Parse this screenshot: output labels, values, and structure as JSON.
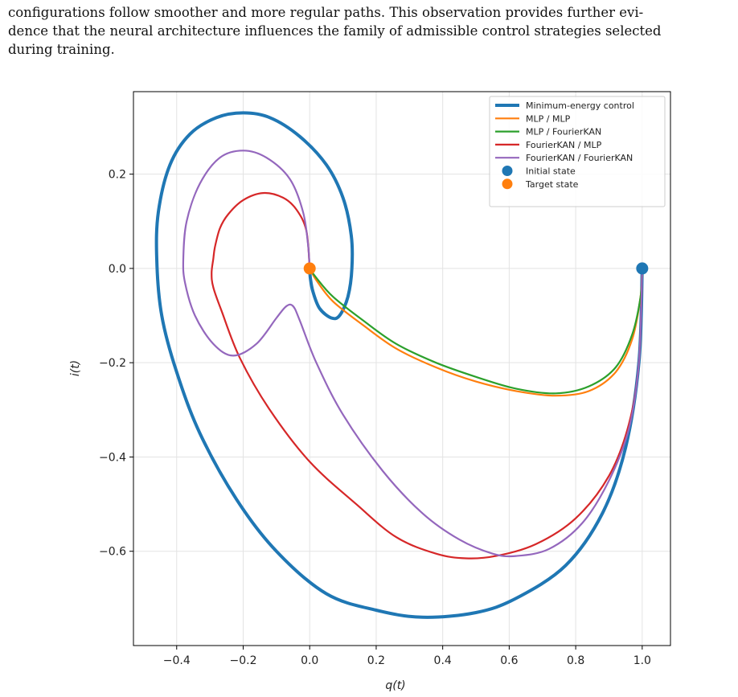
{
  "paragraph": {
    "lines": [
      "configurations follow smoother and more regular paths. This observation provides further evi-",
      "dence that the neural architecture influences the family of admissible control strategies selected",
      "during training."
    ]
  },
  "chart_data": {
    "type": "line",
    "title": "",
    "xlabel": "q(t)",
    "ylabel": "i(t)",
    "xlim": [
      -0.53,
      1.085
    ],
    "ylim": [
      -0.8,
      0.375
    ],
    "xticks": [
      -0.4,
      -0.2,
      0.0,
      0.2,
      0.4,
      0.6,
      0.8,
      1.0
    ],
    "xtick_labels": [
      "−0.4",
      "−0.2",
      "0.0",
      "0.2",
      "0.4",
      "0.6",
      "0.8",
      "1.0"
    ],
    "yticks": [
      0.2,
      0.0,
      -0.2,
      -0.4,
      -0.6
    ],
    "ytick_labels": [
      "0.2",
      "0.0",
      "−0.2",
      "−0.4",
      "−0.6"
    ],
    "grid": true,
    "legend_position": "top-right",
    "series": [
      {
        "name": "Minimum-energy control",
        "color": "#1f77b4",
        "points": [
          [
            1.0,
            0.0
          ],
          [
            0.99,
            -0.2
          ],
          [
            0.95,
            -0.38
          ],
          [
            0.88,
            -0.52
          ],
          [
            0.77,
            -0.63
          ],
          [
            0.62,
            -0.7
          ],
          [
            0.5,
            -0.73
          ],
          [
            0.34,
            -0.74
          ],
          [
            0.2,
            -0.725
          ],
          [
            0.05,
            -0.69
          ],
          [
            -0.1,
            -0.6
          ],
          [
            -0.22,
            -0.49
          ],
          [
            -0.33,
            -0.35
          ],
          [
            -0.4,
            -0.22
          ],
          [
            -0.445,
            -0.1
          ],
          [
            -0.46,
            0.02
          ],
          [
            -0.455,
            0.12
          ],
          [
            -0.42,
            0.22
          ],
          [
            -0.36,
            0.285
          ],
          [
            -0.28,
            0.32
          ],
          [
            -0.2,
            0.33
          ],
          [
            -0.12,
            0.32
          ],
          [
            -0.03,
            0.28
          ],
          [
            0.05,
            0.22
          ],
          [
            0.1,
            0.15
          ],
          [
            0.125,
            0.07
          ],
          [
            0.127,
            0.0
          ],
          [
            0.115,
            -0.06
          ],
          [
            0.09,
            -0.1
          ],
          [
            0.065,
            -0.105
          ],
          [
            0.03,
            -0.085
          ],
          [
            0.01,
            -0.05
          ],
          [
            0.002,
            -0.02
          ],
          [
            0.0,
            0.0
          ]
        ]
      },
      {
        "name": "MLP / MLP",
        "color": "#ff7f0e",
        "points": [
          [
            1.0,
            0.0
          ],
          [
            0.995,
            -0.06
          ],
          [
            0.97,
            -0.15
          ],
          [
            0.92,
            -0.22
          ],
          [
            0.84,
            -0.26
          ],
          [
            0.74,
            -0.27
          ],
          [
            0.62,
            -0.26
          ],
          [
            0.5,
            -0.24
          ],
          [
            0.38,
            -0.21
          ],
          [
            0.26,
            -0.17
          ],
          [
            0.16,
            -0.12
          ],
          [
            0.07,
            -0.07
          ],
          [
            0.02,
            -0.025
          ],
          [
            0.0,
            0.0
          ]
        ]
      },
      {
        "name": "MLP / FourierKAN",
        "color": "#2ca02c",
        "points": [
          [
            1.0,
            0.0
          ],
          [
            0.995,
            -0.06
          ],
          [
            0.97,
            -0.14
          ],
          [
            0.92,
            -0.21
          ],
          [
            0.84,
            -0.25
          ],
          [
            0.74,
            -0.265
          ],
          [
            0.62,
            -0.255
          ],
          [
            0.5,
            -0.23
          ],
          [
            0.38,
            -0.2
          ],
          [
            0.26,
            -0.16
          ],
          [
            0.16,
            -0.11
          ],
          [
            0.07,
            -0.06
          ],
          [
            0.02,
            -0.02
          ],
          [
            0.0,
            0.0
          ]
        ]
      },
      {
        "name": "FourierKAN / MLP",
        "color": "#d62728",
        "points": [
          [
            1.0,
            0.0
          ],
          [
            0.99,
            -0.2
          ],
          [
            0.96,
            -0.33
          ],
          [
            0.9,
            -0.44
          ],
          [
            0.8,
            -0.53
          ],
          [
            0.68,
            -0.585
          ],
          [
            0.56,
            -0.61
          ],
          [
            0.47,
            -0.615
          ],
          [
            0.38,
            -0.605
          ],
          [
            0.26,
            -0.57
          ],
          [
            0.14,
            -0.5
          ],
          [
            0.0,
            -0.41
          ],
          [
            -0.12,
            -0.3
          ],
          [
            -0.21,
            -0.19
          ],
          [
            -0.265,
            -0.09
          ],
          [
            -0.29,
            -0.04
          ],
          [
            -0.295,
            -0.01
          ],
          [
            -0.29,
            0.02
          ],
          [
            -0.285,
            0.045
          ],
          [
            -0.27,
            0.085
          ],
          [
            -0.245,
            0.115
          ],
          [
            -0.2,
            0.145
          ],
          [
            -0.14,
            0.16
          ],
          [
            -0.08,
            0.15
          ],
          [
            -0.04,
            0.125
          ],
          [
            -0.01,
            0.08
          ],
          [
            0.0,
            0.0
          ]
        ]
      },
      {
        "name": "FourierKAN / FourierKAN",
        "color": "#9467bd",
        "points": [
          [
            1.0,
            0.0
          ],
          [
            0.99,
            -0.2
          ],
          [
            0.96,
            -0.34
          ],
          [
            0.9,
            -0.45
          ],
          [
            0.82,
            -0.54
          ],
          [
            0.72,
            -0.595
          ],
          [
            0.62,
            -0.61
          ],
          [
            0.55,
            -0.605
          ],
          [
            0.45,
            -0.575
          ],
          [
            0.34,
            -0.52
          ],
          [
            0.22,
            -0.43
          ],
          [
            0.1,
            -0.31
          ],
          [
            0.02,
            -0.2
          ],
          [
            -0.03,
            -0.11
          ],
          [
            -0.05,
            -0.08
          ],
          [
            -0.07,
            -0.08
          ],
          [
            -0.1,
            -0.105
          ],
          [
            -0.16,
            -0.16
          ],
          [
            -0.23,
            -0.185
          ],
          [
            -0.29,
            -0.16
          ],
          [
            -0.345,
            -0.1
          ],
          [
            -0.375,
            -0.03
          ],
          [
            -0.38,
            0.02
          ],
          [
            -0.37,
            0.1
          ],
          [
            -0.33,
            0.18
          ],
          [
            -0.27,
            0.235
          ],
          [
            -0.2,
            0.25
          ],
          [
            -0.13,
            0.235
          ],
          [
            -0.06,
            0.19
          ],
          [
            -0.02,
            0.12
          ],
          [
            -0.005,
            0.05
          ],
          [
            0.0,
            0.0
          ]
        ]
      }
    ],
    "markers": [
      {
        "name": "Initial state",
        "color": "#1f77b4",
        "x": 1.0,
        "y": 0.0
      },
      {
        "name": "Target state",
        "color": "#ff7f0e",
        "x": 0.0,
        "y": 0.0
      }
    ]
  }
}
